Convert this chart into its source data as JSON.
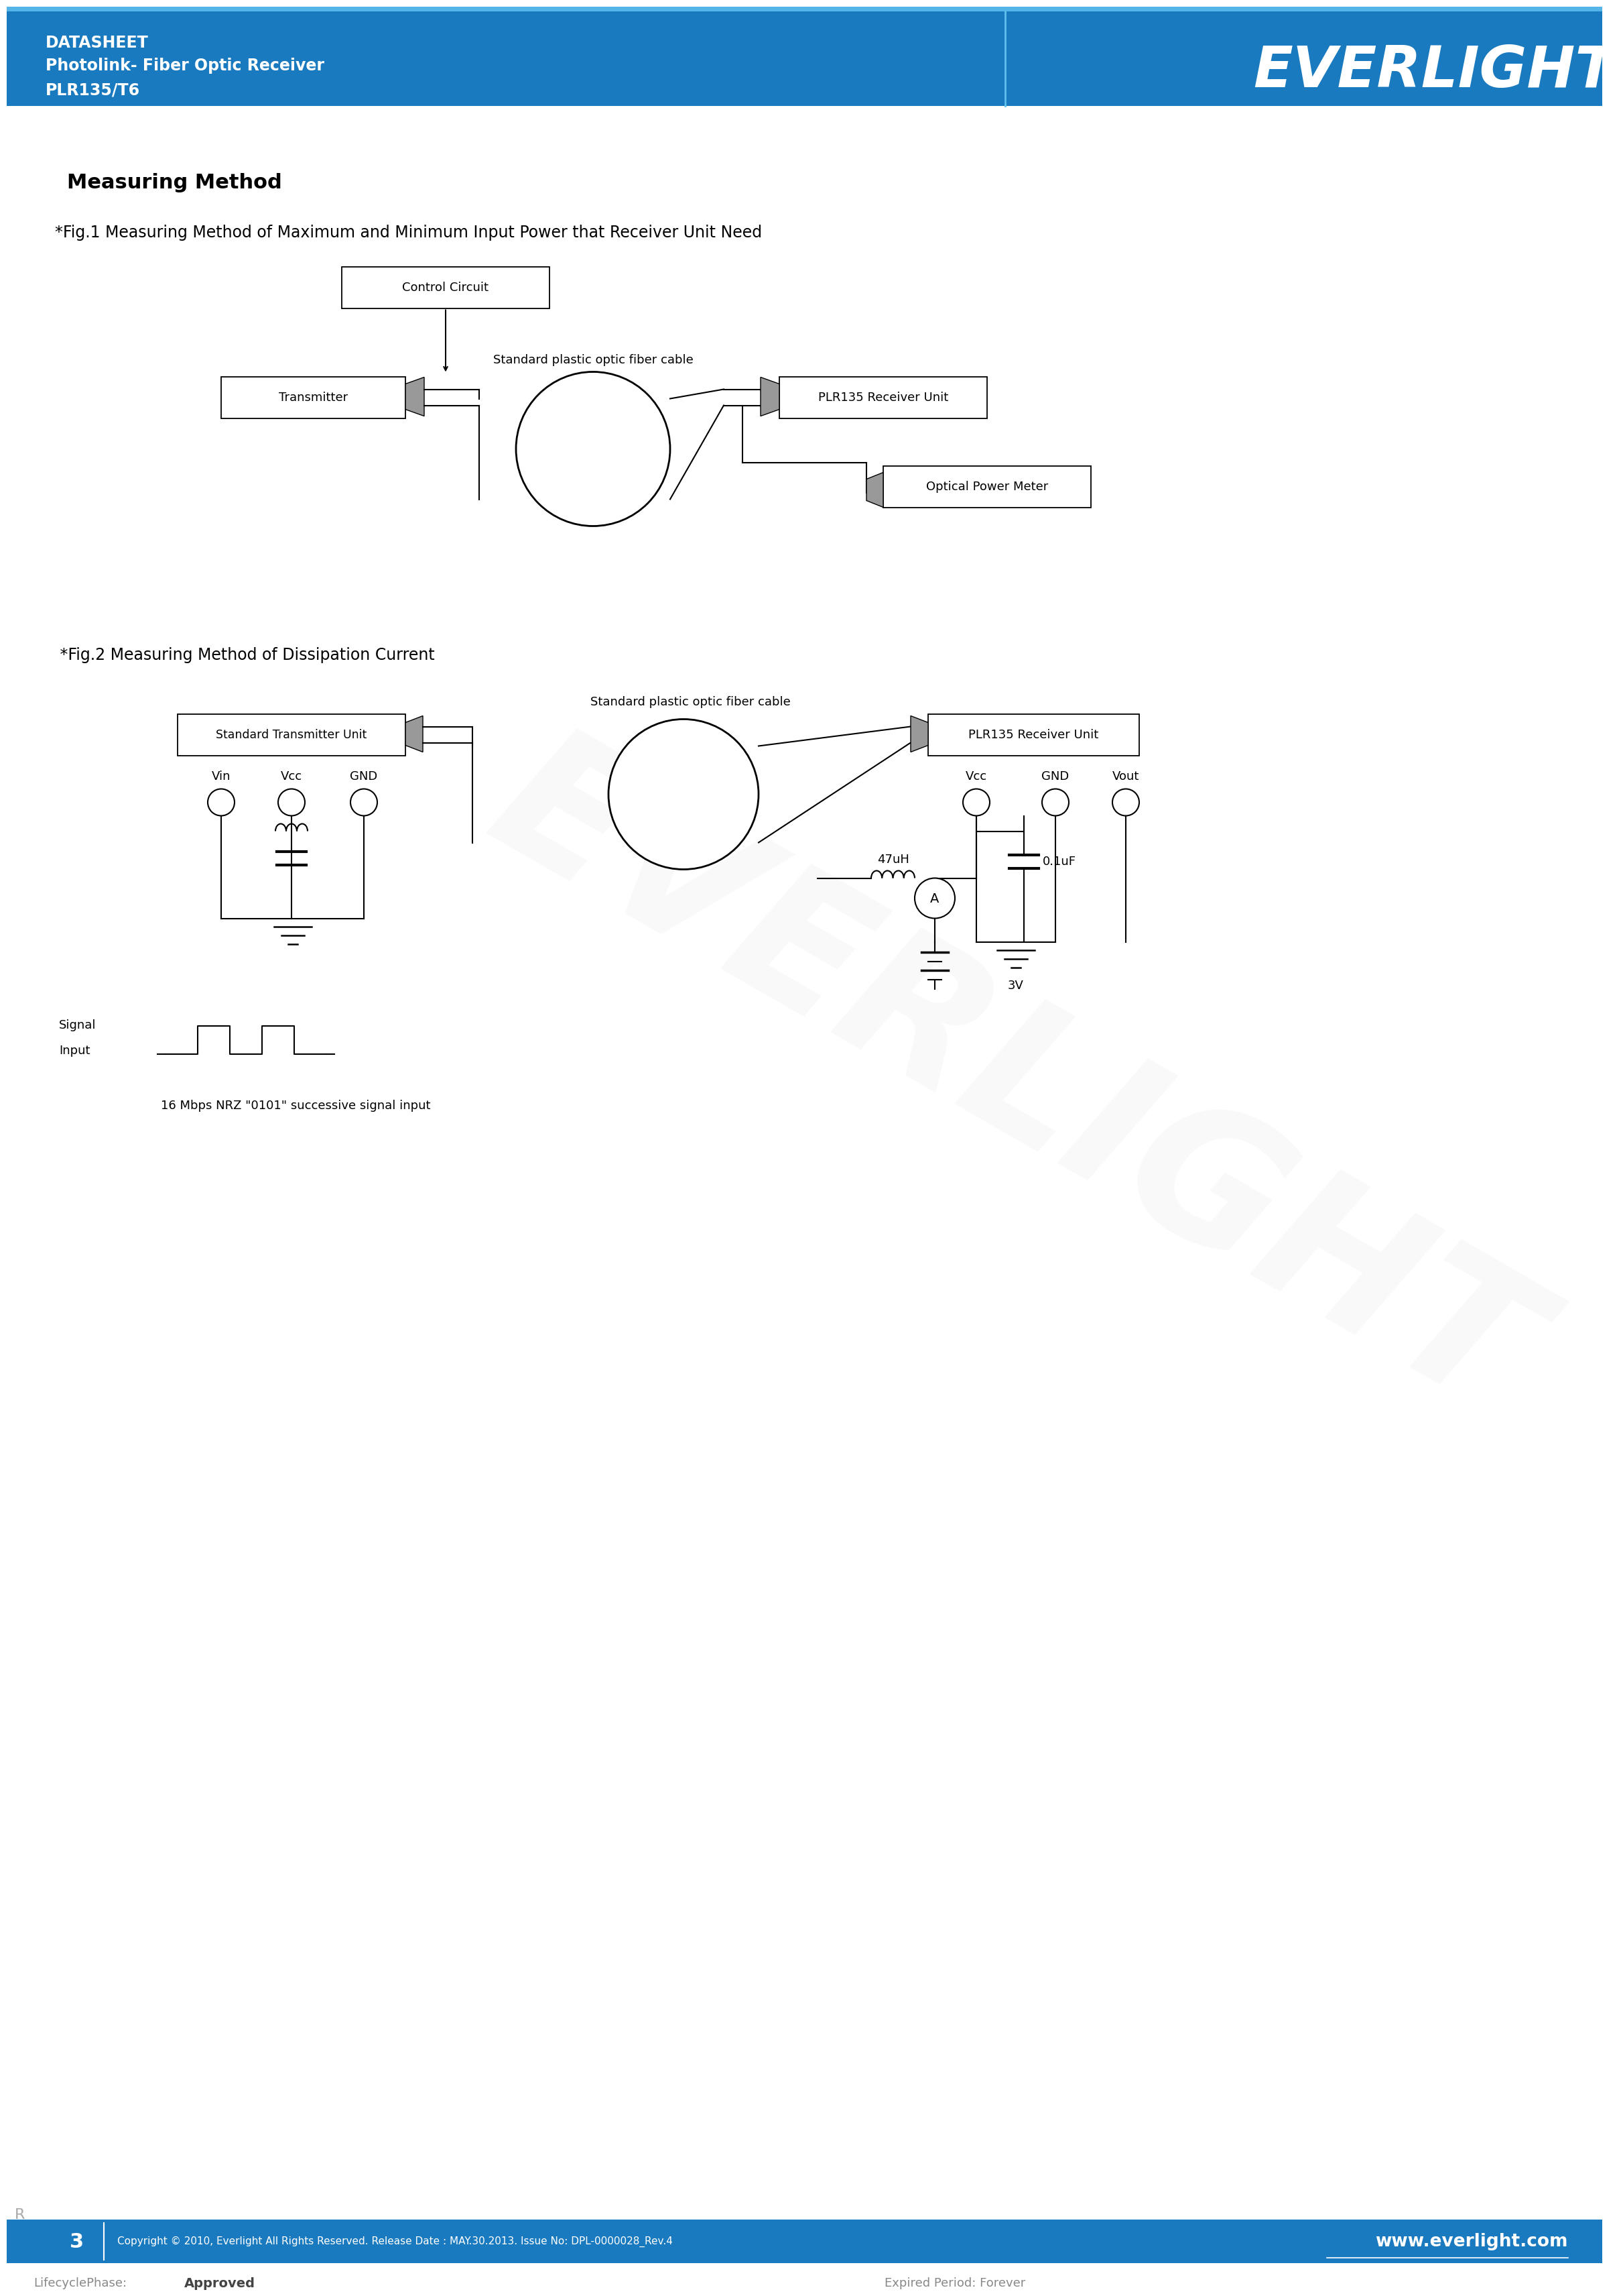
{
  "page_width": 23.81,
  "page_height": 33.67,
  "header_bg": "#1a7abf",
  "header_text_color": "#ffffff",
  "header_line1": "DATASHEET",
  "header_line2": "Photolink- Fiber Optic Receiver",
  "header_line3": "PLR135/T6",
  "logo_text": "EVERLIGHT",
  "footer_bg": "#1a7abf",
  "footer_text_color": "#ffffff",
  "footer_page_num": "3",
  "footer_copyright": "Copyright © 2010, Everlight All Rights Reserved. Release Date : MAY.30.2013. Issue No: DPL-0000028_Rev.4",
  "footer_website": "www.everlight.com",
  "lifecycle_text": "LifecyclePhase:",
  "lifecycle_phase": "Approved",
  "expired_text": "Expired Period: Forever",
  "section_title": "Measuring Method",
  "fig1_title": "*Fig.1 Measuring Method of Maximum and Minimum Input Power that Receiver Unit Need",
  "fig2_title": " *Fig.2 Measuring Method of Dissipation Current",
  "bg_color": "#ffffff",
  "text_color": "#000000"
}
